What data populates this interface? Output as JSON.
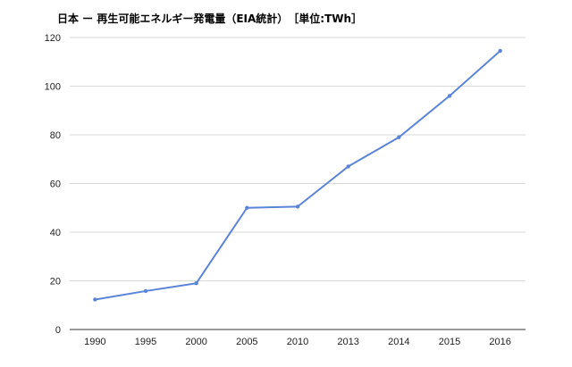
{
  "chart_data": {
    "type": "line",
    "title": "日本 ー 再生可能エネルギー発電量（EIA統計）　［単位:TWh］",
    "xlabel": "",
    "ylabel": "",
    "categories": [
      "1990",
      "1995",
      "2000",
      "2005",
      "2010",
      "2013",
      "2014",
      "2015",
      "2016"
    ],
    "series": [
      {
        "values": [
          12.3,
          15.8,
          19.0,
          50.0,
          50.5,
          67.0,
          79.0,
          96.0,
          114.5
        ]
      }
    ],
    "ylim": [
      0,
      120
    ],
    "yticks": [
      0,
      20,
      40,
      60,
      80,
      100,
      120
    ],
    "grid": true,
    "legend": "none",
    "line_color": "#5b84d6",
    "grid_color": "#d9d9d9",
    "axis_color": "#333333"
  }
}
